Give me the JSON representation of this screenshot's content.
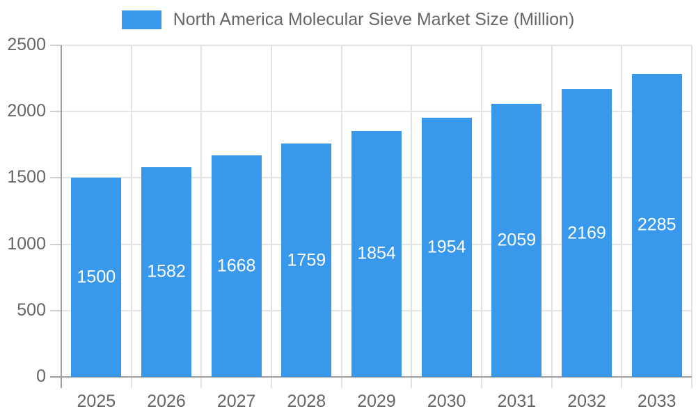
{
  "chart_data": {
    "type": "bar",
    "title": "North America Molecular Sieve Market Size (Million)",
    "legend_position": "top",
    "categories": [
      "2025",
      "2026",
      "2027",
      "2028",
      "2029",
      "2030",
      "2031",
      "2032",
      "2033"
    ],
    "series": [
      {
        "name": "North America Molecular Sieve Market Size (Million)",
        "values": [
          1500,
          1582,
          1668,
          1759,
          1854,
          1954,
          2059,
          2169,
          2285
        ]
      }
    ],
    "value_labels_shown": true,
    "xlabel": "",
    "ylabel": "",
    "ylim": [
      0,
      2500
    ],
    "y_ticks": [
      0,
      500,
      1000,
      1500,
      2000,
      2500
    ],
    "grid": true,
    "colors": {
      "bar": "#3899EC",
      "grid": "#e3e3e3",
      "axis": "#9e9e9e",
      "y_tick_mark": "#cfcfcf",
      "tick_text": "#666666",
      "value_text": "#ffffff",
      "background": "#ffffff"
    }
  }
}
